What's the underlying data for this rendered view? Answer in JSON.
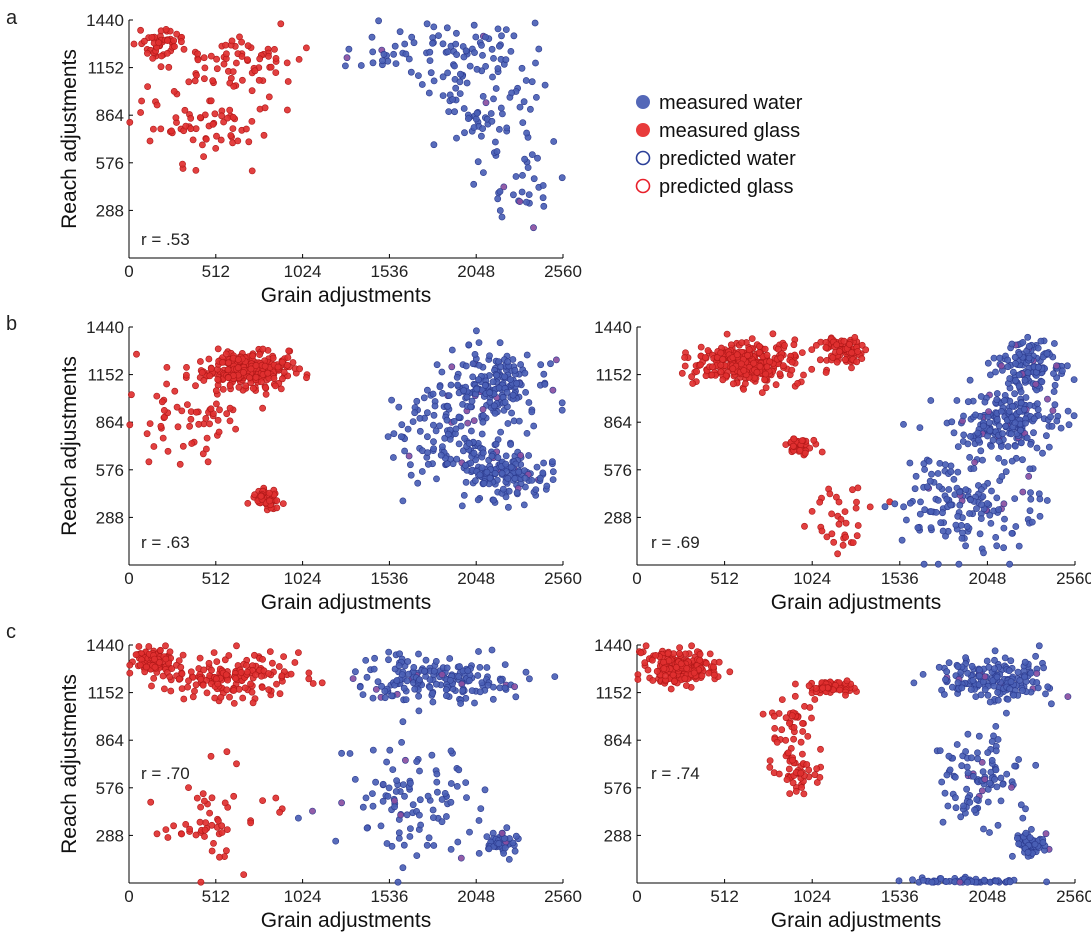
{
  "panel_letters": [
    "a",
    "b",
    "c"
  ],
  "legend": [
    {
      "label": "measured water",
      "style": "filled",
      "color": "#5468b8"
    },
    {
      "label": "measured glass",
      "style": "filled",
      "color": "#e83b3b"
    },
    {
      "label": "predicted water",
      "style": "open",
      "color": "#2b3f98"
    },
    {
      "label": "predicted glass",
      "style": "open",
      "color": "#e8202a"
    }
  ],
  "colors": {
    "water": "#4a5fb5",
    "glass": "#e03030",
    "water_edge": "#2c3b8f",
    "glass_edge": "#b01818",
    "mixed": "#8a4ea0"
  },
  "chart_data": [
    {
      "type": "scatter",
      "panel": "a",
      "xlabel": "Grain adjustments",
      "ylabel": "Reach adjustments",
      "xlim": [
        0,
        2560
      ],
      "ylim": [
        0,
        1440
      ],
      "xticks": [
        "0",
        "512",
        "1024",
        "1536",
        "2048",
        "2560"
      ],
      "yticks": [
        "288",
        "576",
        "864",
        "1152",
        "1440"
      ],
      "annotation": "r = .53",
      "n_points": 370,
      "series": [
        {
          "name": "measured glass",
          "clusters": [
            [
              200,
              1300,
              150,
              80,
              0.22
            ],
            [
              600,
              1200,
              400,
              150,
              0.4
            ],
            [
              450,
              850,
              350,
              250,
              0.38
            ]
          ]
        },
        {
          "name": "measured water",
          "clusters": [
            [
              1850,
              1250,
              500,
              200,
              0.5
            ],
            [
              2100,
              900,
              400,
              300,
              0.35
            ],
            [
              2300,
              450,
              250,
              300,
              0.15
            ]
          ]
        }
      ]
    },
    {
      "type": "scatter",
      "panel": "b-left",
      "xlabel": "Grain adjustments",
      "ylabel": "Reach adjustments",
      "xlim": [
        0,
        2560
      ],
      "ylim": [
        0,
        1440
      ],
      "xticks": [
        "0",
        "512",
        "1024",
        "1536",
        "2048",
        "2560"
      ],
      "yticks": [
        "288",
        "576",
        "864",
        "1152",
        "1440"
      ],
      "annotation": "r = .63",
      "n_points": 900,
      "series": [
        {
          "name": "measured glass",
          "clusters": [
            [
              700,
              1180,
              250,
              100,
              0.7
            ],
            [
              800,
              400,
              80,
              60,
              0.15
            ],
            [
              400,
              900,
              350,
              300,
              0.15
            ]
          ]
        },
        {
          "name": "measured water",
          "clusters": [
            [
              2150,
              1100,
              300,
              200,
              0.4
            ],
            [
              2200,
              550,
              250,
              150,
              0.3
            ],
            [
              1900,
              800,
              350,
              300,
              0.3
            ]
          ]
        }
      ]
    },
    {
      "type": "scatter",
      "panel": "b-right",
      "xlabel": "Grain adjustments",
      "ylabel": "",
      "xlim": [
        0,
        2560
      ],
      "ylim": [
        0,
        1440
      ],
      "xticks": [
        "0",
        "512",
        "1024",
        "1536",
        "2048",
        "2560"
      ],
      "yticks": [
        "288",
        "576",
        "864",
        "1152",
        "1440"
      ],
      "annotation": "r = .69",
      "n_points": 980,
      "series": [
        {
          "name": "measured glass",
          "clusters": [
            [
              650,
              1220,
              300,
              120,
              0.72
            ],
            [
              1200,
              1300,
              150,
              80,
              0.13
            ],
            [
              950,
              720,
              70,
              60,
              0.1
            ],
            [
              1200,
              300,
              200,
              250,
              0.05
            ]
          ]
        },
        {
          "name": "measured water",
          "clusters": [
            [
              2300,
              1200,
              200,
              150,
              0.3
            ],
            [
              2150,
              850,
              300,
              200,
              0.4
            ],
            [
              1900,
              400,
              400,
              300,
              0.3
            ]
          ]
        }
      ]
    },
    {
      "type": "scatter",
      "panel": "c-left",
      "xlabel": "Grain adjustments",
      "ylabel": "Reach adjustments",
      "xlim": [
        0,
        2560
      ],
      "ylim": [
        0,
        1440
      ],
      "xticks": [
        "0",
        "512",
        "1024",
        "1536",
        "2048",
        "2560"
      ],
      "yticks": [
        "288",
        "576",
        "864",
        "1152",
        "1440"
      ],
      "annotation": "r = .70",
      "n_points": 680,
      "series": [
        {
          "name": "measured glass",
          "clusters": [
            [
              150,
              1340,
              120,
              70,
              0.35
            ],
            [
              600,
              1250,
              400,
              150,
              0.5
            ],
            [
              500,
              400,
              350,
              350,
              0.15
            ]
          ]
        },
        {
          "name": "measured water",
          "clusters": [
            [
              1800,
              1220,
              450,
              150,
              0.55
            ],
            [
              2200,
              230,
              100,
              70,
              0.15
            ],
            [
              1700,
              500,
              450,
              350,
              0.3
            ]
          ]
        }
      ]
    },
    {
      "type": "scatter",
      "panel": "c-right",
      "xlabel": "Grain adjustments",
      "ylabel": "",
      "xlim": [
        0,
        2560
      ],
      "ylim": [
        0,
        1440
      ],
      "xticks": [
        "0",
        "512",
        "1024",
        "1536",
        "2048",
        "2560"
      ],
      "yticks": [
        "288",
        "576",
        "864",
        "1152",
        "1440"
      ],
      "annotation": "r = .74",
      "n_points": 760,
      "series": [
        {
          "name": "measured glass",
          "clusters": [
            [
              250,
              1300,
              200,
              100,
              0.6
            ],
            [
              1150,
              1180,
              120,
              40,
              0.15
            ],
            [
              950,
              700,
              120,
              150,
              0.15
            ],
            [
              900,
              1000,
              150,
              150,
              0.1
            ]
          ]
        },
        {
          "name": "measured water",
          "clusters": [
            [
              2100,
              1230,
              350,
              130,
              0.45
            ],
            [
              2300,
              240,
              100,
              80,
              0.15
            ],
            [
              2000,
              650,
              250,
              300,
              0.25
            ],
            [
              1900,
              10,
              350,
              20,
              0.15
            ]
          ]
        }
      ]
    }
  ]
}
